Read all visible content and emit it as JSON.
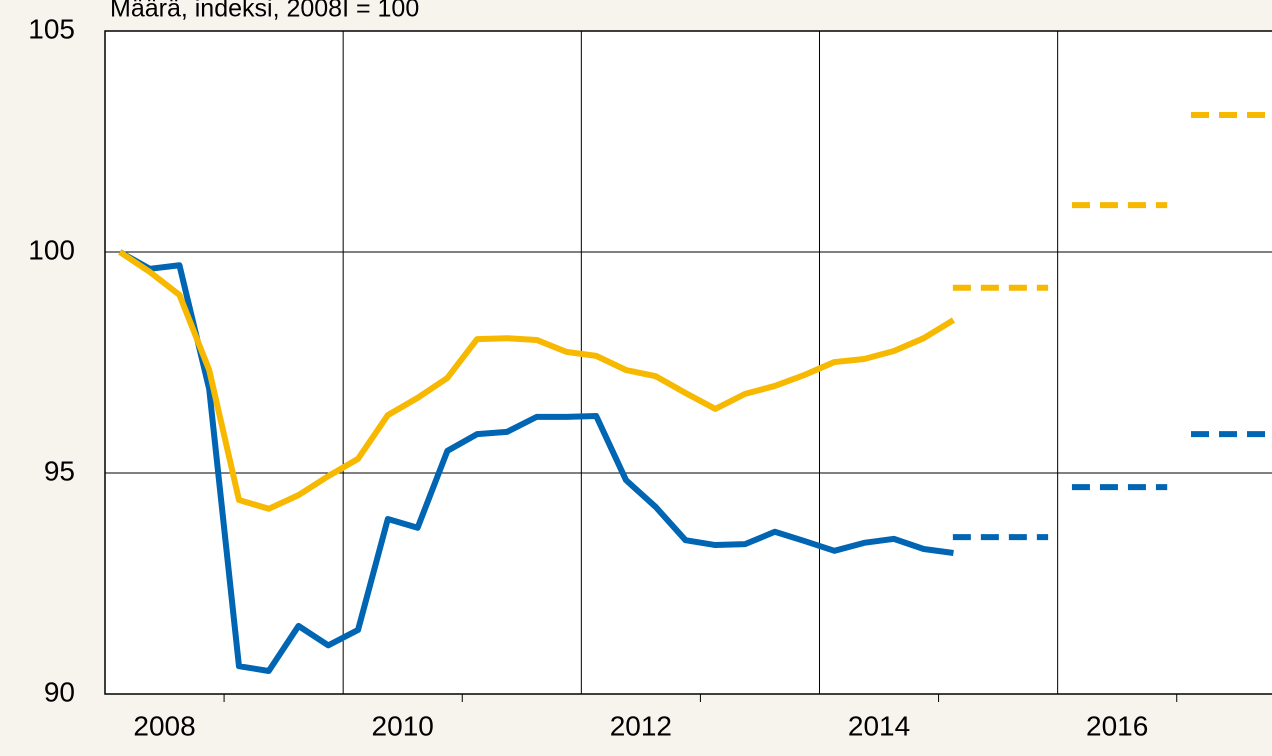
{
  "chart_data": {
    "type": "line",
    "title": "Määrä, indeksi, 2008I = 100",
    "x": [
      2008.125,
      2008.375,
      2008.625,
      2008.875,
      2009.125,
      2009.375,
      2009.625,
      2009.875,
      2010.125,
      2010.375,
      2010.625,
      2010.875,
      2011.125,
      2011.375,
      2011.625,
      2011.875,
      2012.125,
      2012.375,
      2012.625,
      2012.875,
      2013.125,
      2013.375,
      2013.625,
      2013.875,
      2014.125,
      2014.375,
      2014.625,
      2014.875,
      2015.125
    ],
    "series": [
      {
        "color": "#0066b3",
        "values": [
          100,
          99.62,
          99.7,
          96.9,
          90.63,
          90.52,
          91.54,
          91.1,
          91.45,
          93.96,
          93.76,
          95.5,
          95.88,
          95.93,
          96.27,
          96.27,
          96.29,
          94.84,
          94.23,
          93.48,
          93.37,
          93.39,
          93.67,
          93.46,
          93.24,
          93.42,
          93.51,
          93.28,
          93.19
        ]
      },
      {
        "color": "#f7b800",
        "values": [
          100,
          99.55,
          99.03,
          97.33,
          94.39,
          94.19,
          94.5,
          94.93,
          95.32,
          96.31,
          96.7,
          97.15,
          98.03,
          98.05,
          98.01,
          97.74,
          97.65,
          97.33,
          97.19,
          96.81,
          96.45,
          96.79,
          96.97,
          97.22,
          97.51,
          97.58,
          97.76,
          98.05,
          98.46
        ]
      }
    ],
    "forecasts": [
      {
        "color": "#0066b3",
        "dashed": true,
        "x": [
          2015,
          2016,
          2017
        ],
        "values": [
          93.55,
          94.68,
          95.88
        ]
      },
      {
        "color": "#f7b800",
        "dashed": true,
        "x": [
          2015,
          2016,
          2017
        ],
        "values": [
          99.19,
          101.06,
          103.1
        ]
      }
    ],
    "xlim": [
      2008,
      2017.8
    ],
    "xticks": [
      2008,
      2010,
      2012,
      2014,
      2016
    ],
    "xminorticks": [
      2009,
      2011,
      2013,
      2015,
      2017
    ],
    "ylim": [
      90,
      105
    ],
    "yticks": [
      90,
      95,
      100,
      105
    ],
    "grid": true
  }
}
